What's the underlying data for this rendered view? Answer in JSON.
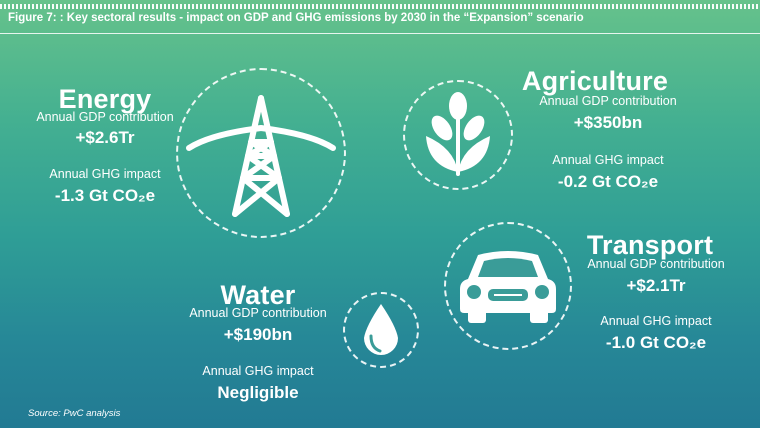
{
  "figure_title": "Figure 7: : Key sectoral results - impact on GDP and GHG emissions by 2030 in the “Expansion” scenario",
  "sectors": {
    "energy": {
      "name": "Energy",
      "gdp_label": "Annual GDP contribution",
      "gdp_value": "+$2.6Tr",
      "ghg_label": "Annual GHG impact",
      "ghg_value": "-1.3 Gt CO₂e",
      "icon": "power-pylon-icon"
    },
    "agriculture": {
      "name": "Agriculture",
      "gdp_label": "Annual GDP contribution",
      "gdp_value": "+$350bn",
      "ghg_label": "Annual GHG impact",
      "ghg_value": "-0.2 Gt CO₂e",
      "icon": "wheat-icon"
    },
    "transport": {
      "name": "Transport",
      "gdp_label": "Annual GDP contribution",
      "gdp_value": "+$2.1Tr",
      "ghg_label": "Annual GHG impact",
      "ghg_value": "-1.0 Gt CO₂e",
      "icon": "car-icon"
    },
    "water": {
      "name": "Water",
      "gdp_label": "Annual GDP contribution",
      "gdp_value": "+$190bn",
      "ghg_label": "Annual GHG impact",
      "ghg_value": "Negligible",
      "icon": "water-drop-icon"
    }
  },
  "source": "Source: PwC analysis"
}
